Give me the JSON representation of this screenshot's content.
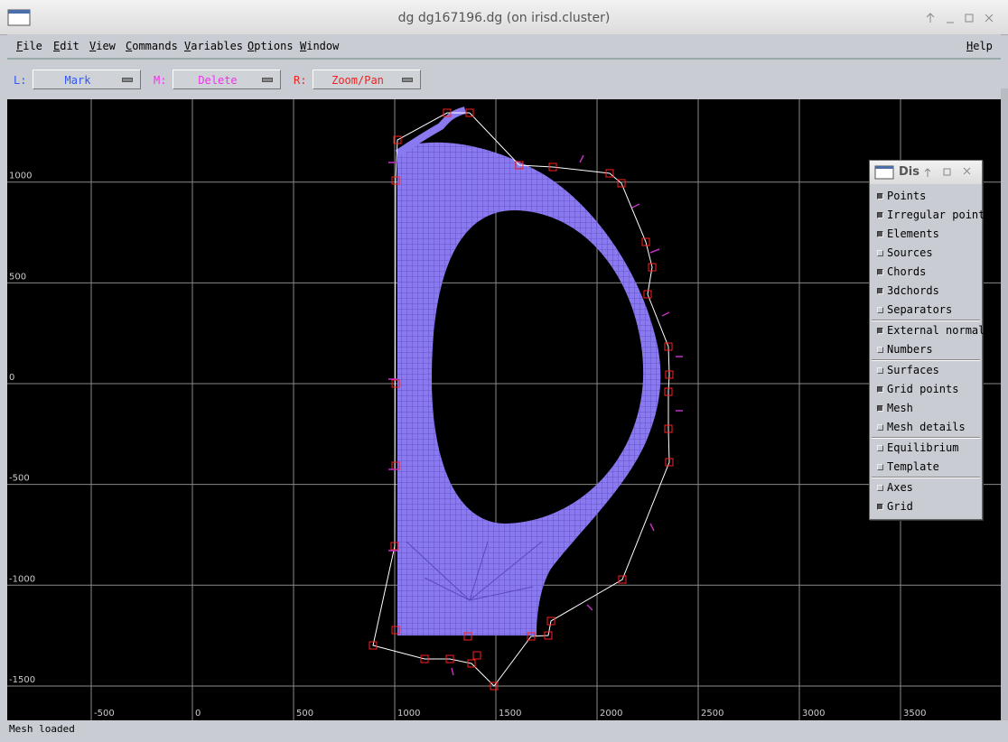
{
  "window": {
    "title": "dg dg167196.dg (on irisd.cluster)"
  },
  "menu": {
    "items": [
      "File",
      "Edit",
      "View",
      "Commands",
      "Variables",
      "Options",
      "Window"
    ],
    "help": "Help"
  },
  "toolbar": {
    "buttons": [
      {
        "key": "L:",
        "action": "Mark",
        "color": "#3355ee"
      },
      {
        "key": "M:",
        "action": "Delete",
        "color": "#ee33ee"
      },
      {
        "key": "R:",
        "action": "Zoom/Pan",
        "color": "#ee2222"
      }
    ]
  },
  "plot": {
    "xticks": [
      -500,
      0,
      500,
      1000,
      1500,
      2000,
      2500,
      3000,
      3500
    ],
    "yticks": [
      1000,
      500,
      0,
      -500,
      -1000,
      -1500
    ]
  },
  "display_panel": {
    "title": "Dis",
    "groups": [
      [
        {
          "label": "Points",
          "checked": true
        },
        {
          "label": "Irregular points",
          "checked": true
        },
        {
          "label": "Elements",
          "checked": true
        },
        {
          "label": "Sources",
          "checked": false
        },
        {
          "label": "Chords",
          "checked": true
        },
        {
          "label": "3dchords",
          "checked": true
        },
        {
          "label": "Separators",
          "checked": false
        }
      ],
      [
        {
          "label": "External normals",
          "checked": true
        },
        {
          "label": "Numbers",
          "checked": false
        }
      ],
      [
        {
          "label": "Surfaces",
          "checked": false
        },
        {
          "label": "Grid points",
          "checked": true
        },
        {
          "label": "Mesh",
          "checked": true
        },
        {
          "label": "Mesh details",
          "checked": false
        }
      ],
      [
        {
          "label": "Equilibrium",
          "checked": false
        },
        {
          "label": "Template",
          "checked": false
        }
      ],
      [
        {
          "label": "Axes",
          "checked": false
        },
        {
          "label": "Grid",
          "checked": true
        }
      ]
    ]
  },
  "status": "Mesh loaded"
}
